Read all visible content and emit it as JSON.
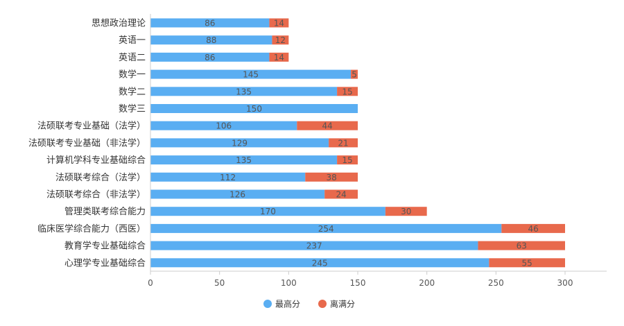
{
  "chart_data": {
    "type": "bar",
    "orientation": "horizontal",
    "stacked": true,
    "categories": [
      "思想政治理论",
      "英语一",
      "英语二",
      "数学一",
      "数学二",
      "数学三",
      "法硕联考专业基础（法学）",
      "法硕联考专业基础（非法学）",
      "计算机学科专业基础综合",
      "法硕联考综合（法学）",
      "法硕联考综合（非法学）",
      "管理类联考综合能力",
      "临床医学综合能力（西医）",
      "教育学专业基础综合",
      "心理学专业基础综合"
    ],
    "series": [
      {
        "name": "最高分",
        "color": "#5AAEF2",
        "values": [
          86,
          88,
          86,
          145,
          135,
          150,
          106,
          129,
          135,
          112,
          126,
          170,
          254,
          237,
          245
        ]
      },
      {
        "name": "离满分",
        "color": "#E8694C",
        "values": [
          14,
          12,
          14,
          5,
          15,
          0,
          44,
          21,
          15,
          38,
          24,
          30,
          46,
          63,
          55
        ]
      }
    ],
    "xlim": [
      0,
      300
    ],
    "xticks": [
      "0",
      "50",
      "100",
      "150",
      "200",
      "250",
      "300"
    ],
    "grid": false,
    "legend_position": "bottom-center",
    "title": "",
    "xlabel": "",
    "ylabel": ""
  }
}
